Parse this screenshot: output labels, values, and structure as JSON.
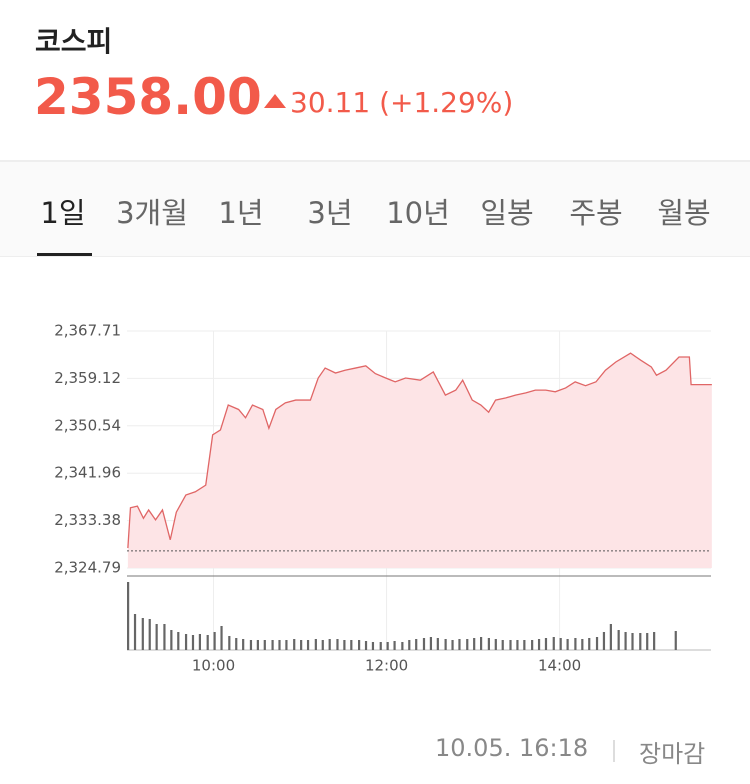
{
  "header": {
    "title": "코스피",
    "price": "2358.00",
    "change": "30.11",
    "change_rate": "(+1.29%)"
  },
  "tabs": [
    "1일",
    "3개월",
    "1년",
    "3년",
    "10년",
    "일봉",
    "주봉",
    "월봉"
  ],
  "chart": {
    "type": "line",
    "color": "#e06666",
    "fill": "#fde4e6",
    "x": [
      9.01,
      9.04,
      9.12,
      9.19,
      9.25,
      9.33,
      9.41,
      9.5,
      9.57,
      9.68,
      9.79,
      9.91,
      9.99,
      10.08,
      10.17,
      10.29,
      10.37,
      10.45,
      10.57,
      10.64,
      10.72,
      10.83,
      10.95,
      11.12,
      11.21,
      11.29,
      11.41,
      11.52,
      11.64,
      11.76,
      11.87,
      11.99,
      12.1,
      12.22,
      12.39,
      12.54,
      12.68,
      12.8,
      12.88,
      12.99,
      13.09,
      13.18,
      13.26,
      13.38,
      13.49,
      13.61,
      13.72,
      13.84,
      13.95,
      14.07,
      14.18,
      14.3,
      14.42,
      14.53,
      14.65,
      14.82,
      14.94,
      15.06,
      15.12,
      15.23,
      15.38,
      15.5,
      15.52,
      15.76
    ],
    "values": [
      2328.4,
      2335.7,
      2336.0,
      2333.8,
      2335.3,
      2333.5,
      2335.3,
      2329.9,
      2334.9,
      2338.0,
      2338.6,
      2339.8,
      2348.9,
      2349.8,
      2354.3,
      2353.5,
      2352.0,
      2354.3,
      2353.5,
      2350.1,
      2353.5,
      2354.7,
      2355.2,
      2355.2,
      2359.2,
      2361.0,
      2360.1,
      2360.6,
      2361.0,
      2361.4,
      2360.0,
      2359.2,
      2358.5,
      2359.2,
      2358.8,
      2360.3,
      2356.1,
      2357.0,
      2358.8,
      2355.2,
      2354.3,
      2353.0,
      2355.2,
      2355.6,
      2356.1,
      2356.5,
      2357.0,
      2357.0,
      2356.7,
      2357.4,
      2358.5,
      2357.8,
      2358.5,
      2360.6,
      2362.1,
      2363.7,
      2362.4,
      2361.2,
      2359.7,
      2360.6,
      2363.0,
      2363.0,
      2358.0,
      2358.0
    ],
    "prev_close": 2327.89,
    "xlim": [
      9,
      15.75
    ],
    "xticks": [
      {
        "value": 10,
        "label": "10:00"
      },
      {
        "value": 12,
        "label": "12:00"
      },
      {
        "value": 14,
        "label": "14:00"
      }
    ],
    "ylim": [
      2324.79,
      2367.71
    ],
    "yticks": [
      {
        "value": 2324.79,
        "label": "2,324.79"
      },
      {
        "value": 2333.38,
        "label": "2,333.38"
      },
      {
        "value": 2341.96,
        "label": "2,341.96"
      },
      {
        "value": 2350.54,
        "label": "2,350.54"
      },
      {
        "value": 2359.12,
        "label": "2,359.12"
      },
      {
        "value": 2367.71,
        "label": "2,367.71"
      }
    ],
    "volume": {
      "color": "#666666",
      "ylim": [
        0,
        74
      ],
      "x": [
        9.0,
        9.08,
        9.17,
        9.25,
        9.33,
        9.42,
        9.5,
        9.58,
        9.67,
        9.75,
        9.83,
        9.92,
        10.0,
        10.08,
        10.17,
        10.25,
        10.33,
        10.42,
        10.5,
        10.58,
        10.67,
        10.75,
        10.83,
        10.92,
        11.0,
        11.08,
        11.17,
        11.25,
        11.33,
        11.42,
        11.5,
        11.58,
        11.67,
        11.75,
        11.83,
        11.92,
        12.0,
        12.08,
        12.17,
        12.25,
        12.33,
        12.42,
        12.5,
        12.58,
        12.67,
        12.75,
        12.83,
        12.92,
        13.0,
        13.08,
        13.17,
        13.25,
        13.33,
        13.42,
        13.5,
        13.58,
        13.67,
        13.75,
        13.83,
        13.92,
        14.0,
        14.08,
        14.17,
        14.25,
        14.33,
        14.42,
        14.5,
        14.58,
        14.67,
        14.75,
        14.83,
        14.92,
        15.0,
        15.08,
        15.17,
        15.25,
        15.33
      ],
      "values": [
        68,
        36,
        32,
        31,
        26,
        26,
        20,
        18,
        16,
        15,
        16,
        15,
        18,
        24,
        14,
        12,
        11,
        10,
        10,
        10,
        10,
        10,
        10,
        11,
        10,
        10,
        11,
        10,
        11,
        11,
        10,
        10,
        10,
        9,
        8,
        8,
        8,
        9,
        8,
        10,
        11,
        12,
        13,
        12,
        11,
        10,
        11,
        11,
        12,
        13,
        12,
        11,
        10,
        10,
        10,
        10,
        10,
        11,
        12,
        13,
        12,
        11,
        12,
        11,
        12,
        13,
        18,
        26,
        20,
        18,
        17,
        17,
        17,
        18,
        0,
        0,
        19
      ]
    }
  },
  "footer": {
    "timestamp": "10.05. 16:18",
    "status": "장마감"
  }
}
